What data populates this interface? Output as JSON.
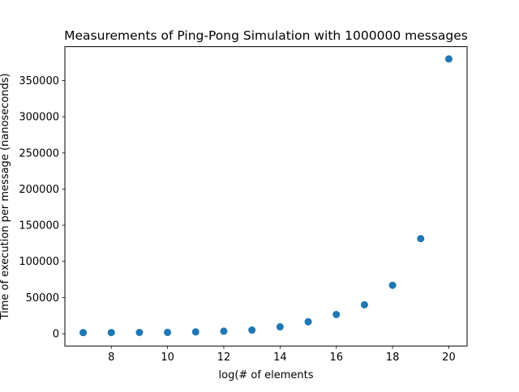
{
  "chart_data": {
    "type": "scatter",
    "title": "Measurements of Ping-Pong Simulation with 1000000 messages",
    "xlabel": "log(# of elements",
    "ylabel": "Time of execution per message (nanoseconds)",
    "xlim": [
      6.35,
      20.65
    ],
    "ylim": [
      -17000,
      397000
    ],
    "x_ticks": [
      8,
      10,
      12,
      14,
      16,
      18,
      20
    ],
    "y_ticks": [
      0,
      50000,
      100000,
      150000,
      200000,
      250000,
      300000,
      350000
    ],
    "grid": false,
    "marker_color": "#1f77b4",
    "series": [
      {
        "x": [
          7,
          8,
          9,
          10,
          11,
          12,
          13,
          14,
          15,
          16,
          17,
          18,
          19,
          20
        ],
        "y": [
          1500,
          1600,
          1700,
          1800,
          2500,
          3500,
          5000,
          9500,
          16500,
          26500,
          40000,
          67000,
          131500,
          380000
        ]
      }
    ]
  }
}
